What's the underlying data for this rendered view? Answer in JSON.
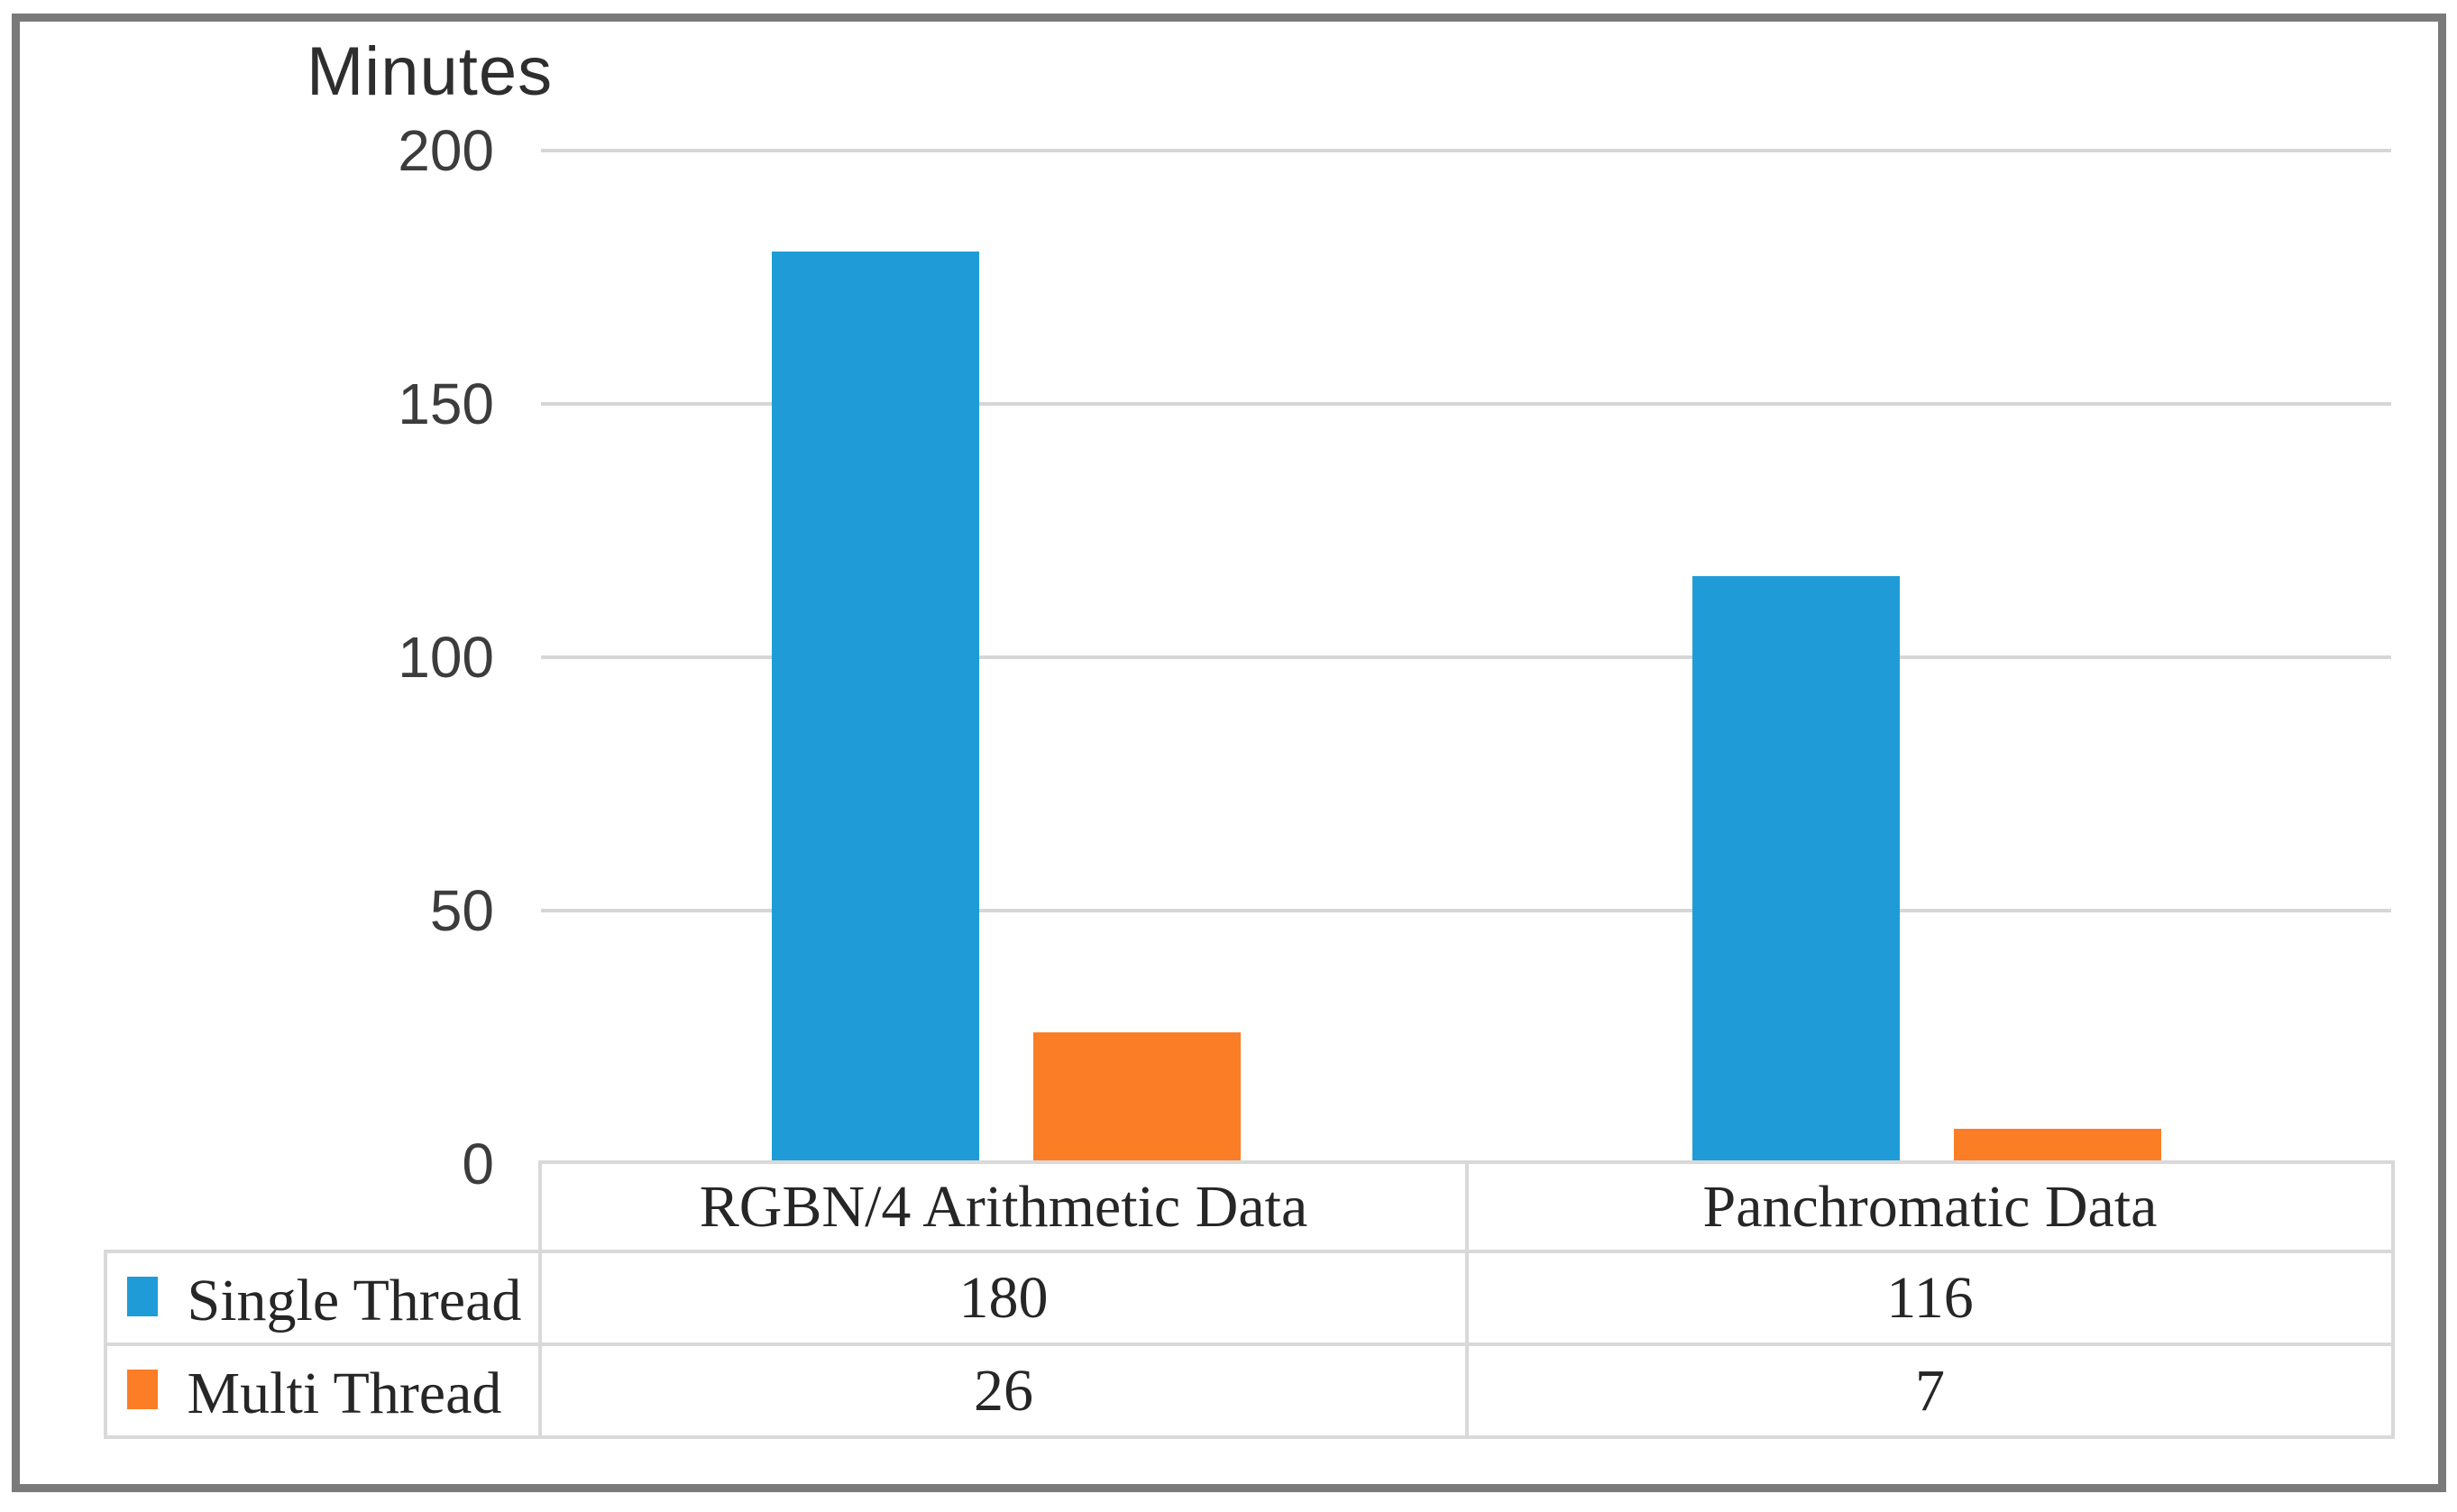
{
  "chart_data": {
    "type": "bar",
    "title": "Minutes",
    "categories": [
      "RGBN/4 Arithmetic Data",
      "Panchromatic Data"
    ],
    "series": [
      {
        "name": "Single Thread",
        "color": "#1f9cd7",
        "values": [
          180,
          116
        ]
      },
      {
        "name": "Multi Thread",
        "color": "#fb7d26",
        "values": [
          26,
          7
        ]
      }
    ],
    "ylabel": "Minutes",
    "ylim": [
      0,
      200
    ],
    "yticks": [
      0,
      50,
      100,
      150,
      200
    ],
    "grid": true,
    "legend_position": "bottom data table",
    "colors": {
      "grid_line": "#d6d6d6",
      "table_border": "#d9d9d9",
      "outer_frame": "#7a7a7a",
      "axis_text": "#3c3c3c",
      "table_text": "#262626",
      "background": "#ffffff"
    }
  }
}
